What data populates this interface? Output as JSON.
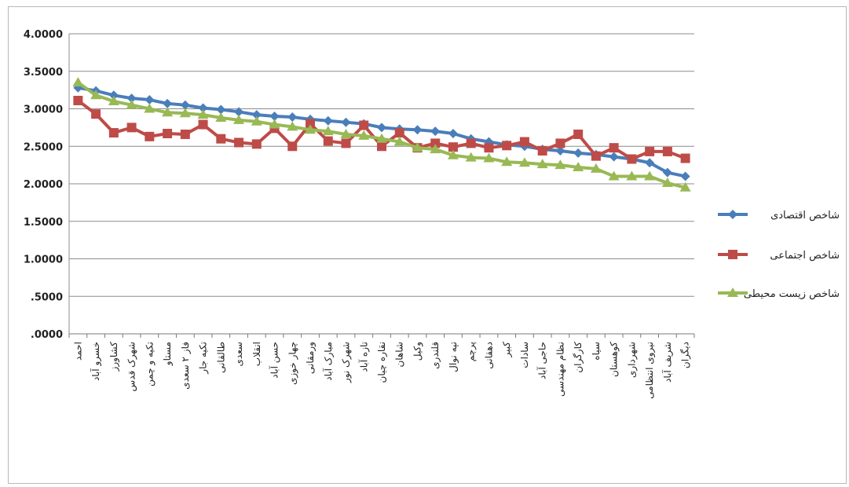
{
  "chart_data": {
    "type": "line",
    "ylim": [
      0,
      4
    ],
    "yticks": [
      ".0000",
      ".5000",
      "1.0000",
      "1.5000",
      "2.0000",
      "2.5000",
      "3.0000",
      "3.5000",
      "4.0000"
    ],
    "grid": true,
    "legend_position": "right",
    "categories": [
      "احمد",
      "خسرو آباد",
      "کشاورز",
      "شهرک قدس",
      "تکیه و چمن",
      "مستاو",
      "فاز ۲ سعدی",
      "تکیه جار",
      "طالقانی",
      "سعدی",
      "انقلاب",
      "حسن آباد",
      "چهار خوزی",
      "ورمقانی",
      "مبارک آباد",
      "شهرک نور",
      "تازه آباد",
      "نقاره چیان",
      "شاهان",
      "وکیل",
      "قلندری",
      "تپه نوال",
      "پرچم",
      "دهقانی",
      "کبیر",
      "سادات",
      "حاجی آباد",
      "نظام مهندسی",
      "کارگران",
      "سیاه",
      "کوهستان",
      "شهرداری",
      "نیروی انتظامی",
      "شریف آباد",
      "دیگران"
    ],
    "series": [
      {
        "name": "شاخص اقتصادی",
        "color": "#4a7ebb",
        "marker": "diamond",
        "values": [
          3.28,
          3.24,
          3.18,
          3.14,
          3.12,
          3.07,
          3.05,
          3.01,
          2.99,
          2.96,
          2.92,
          2.9,
          2.89,
          2.86,
          2.84,
          2.82,
          2.8,
          2.75,
          2.73,
          2.72,
          2.7,
          2.67,
          2.6,
          2.56,
          2.52,
          2.5,
          2.46,
          2.44,
          2.41,
          2.39,
          2.36,
          2.33,
          2.28,
          2.15,
          2.1
        ]
      },
      {
        "name": "شاخص اجتماعی",
        "color": "#be4b48",
        "marker": "square",
        "values": [
          3.11,
          2.93,
          2.68,
          2.75,
          2.63,
          2.67,
          2.66,
          2.79,
          2.6,
          2.55,
          2.53,
          2.74,
          2.5,
          2.8,
          2.57,
          2.54,
          2.78,
          2.5,
          2.68,
          2.48,
          2.54,
          2.49,
          2.54,
          2.48,
          2.51,
          2.56,
          2.44,
          2.54,
          2.66,
          2.37,
          2.48,
          2.33,
          2.43,
          2.43,
          2.34
        ]
      },
      {
        "name": "شاخص زیست محیطی",
        "color": "#98b954",
        "marker": "triangle",
        "values": [
          3.35,
          3.18,
          3.1,
          3.05,
          3.0,
          2.95,
          2.94,
          2.92,
          2.88,
          2.85,
          2.83,
          2.79,
          2.76,
          2.72,
          2.7,
          2.66,
          2.64,
          2.6,
          2.56,
          2.48,
          2.46,
          2.38,
          2.35,
          2.34,
          2.29,
          2.28,
          2.26,
          2.25,
          2.22,
          2.2,
          2.1,
          2.1,
          2.1,
          2.01,
          1.95
        ]
      }
    ]
  }
}
